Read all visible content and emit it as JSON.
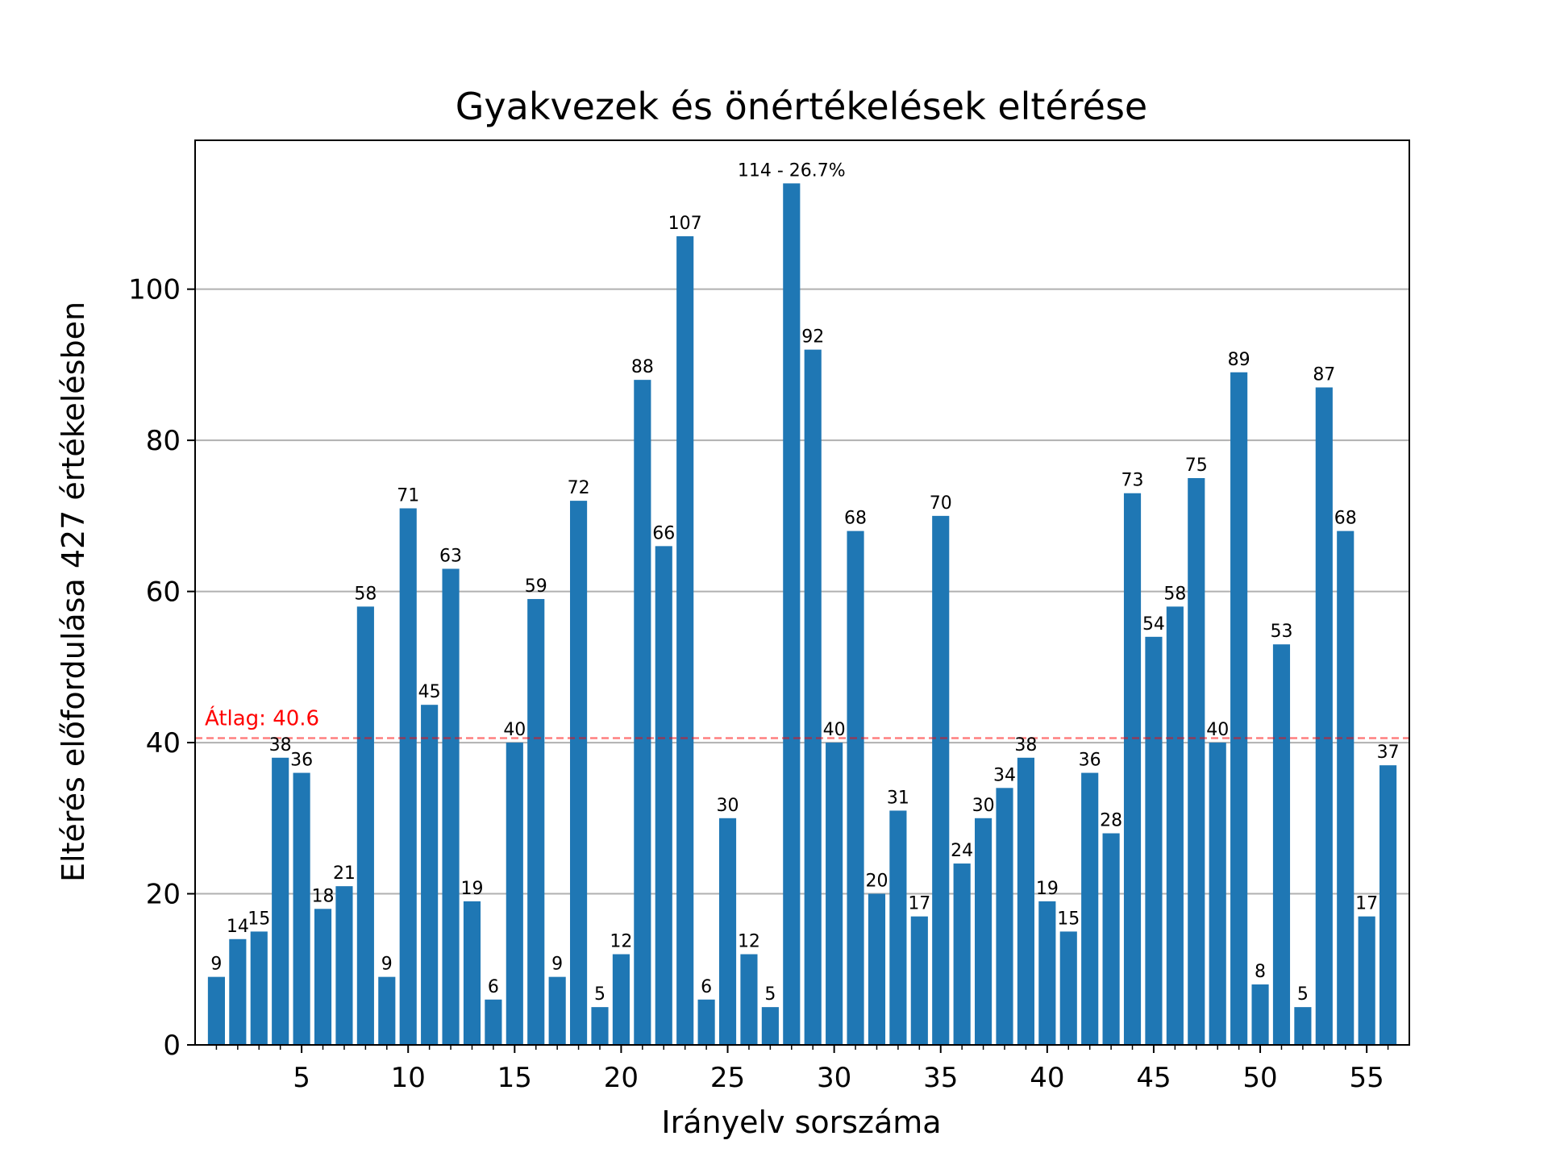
{
  "chart_data": {
    "type": "bar",
    "title": "Gyakvezek és önértékelések eltérése",
    "xlabel": "Irányelv sorszáma",
    "ylabel": "Eltérés előfordulása 427 értékelésben",
    "x": [
      1,
      2,
      3,
      4,
      5,
      6,
      7,
      8,
      9,
      10,
      11,
      12,
      13,
      14,
      15,
      16,
      17,
      18,
      19,
      20,
      21,
      22,
      23,
      24,
      25,
      26,
      27,
      28,
      29,
      30,
      31,
      32,
      33,
      34,
      35,
      36,
      37,
      38,
      39,
      40,
      41,
      42,
      43,
      44,
      45,
      46,
      47,
      48,
      49,
      50,
      51,
      52,
      53,
      54,
      55,
      56
    ],
    "values": [
      9,
      14,
      15,
      38,
      36,
      18,
      21,
      58,
      9,
      71,
      45,
      63,
      19,
      6,
      40,
      59,
      9,
      72,
      5,
      12,
      88,
      66,
      107,
      6,
      30,
      12,
      5,
      114,
      92,
      40,
      68,
      20,
      31,
      17,
      70,
      24,
      30,
      34,
      38,
      19,
      15,
      36,
      28,
      73,
      54,
      58,
      75,
      40,
      89,
      8,
      53,
      5,
      87,
      68,
      17,
      37
    ],
    "bar_labels": [
      "9",
      "14",
      "15",
      "38",
      "36",
      "18",
      "21",
      "58",
      "9",
      "71",
      "45",
      "63",
      "19",
      "6",
      "40",
      "59",
      "9",
      "72",
      "5",
      "12",
      "88",
      "66",
      "107",
      "6",
      "30",
      "12",
      "5",
      "114 - 26.7%",
      "92",
      "40",
      "68",
      "20",
      "31",
      "17",
      "70",
      "24",
      "30",
      "34",
      "38",
      "19",
      "15",
      "36",
      "28",
      "73",
      "54",
      "58",
      "75",
      "40",
      "89",
      "8",
      "53",
      "5",
      "87",
      "68",
      "17",
      "37"
    ],
    "xticks": [
      5,
      10,
      15,
      20,
      25,
      30,
      35,
      40,
      45,
      50,
      55
    ],
    "yticks": [
      0,
      20,
      40,
      60,
      80,
      100
    ],
    "ylim": [
      0,
      119.7
    ],
    "xlim": [
      0.0,
      57.0
    ],
    "mean": {
      "value": 40.6,
      "label": "Átlag: 40.6",
      "color": "#ff0000",
      "style": "dashed"
    },
    "bar_color": "#1f77b4",
    "grid": {
      "axis": "y",
      "color": "#b0b0b0"
    },
    "legend": "none"
  }
}
